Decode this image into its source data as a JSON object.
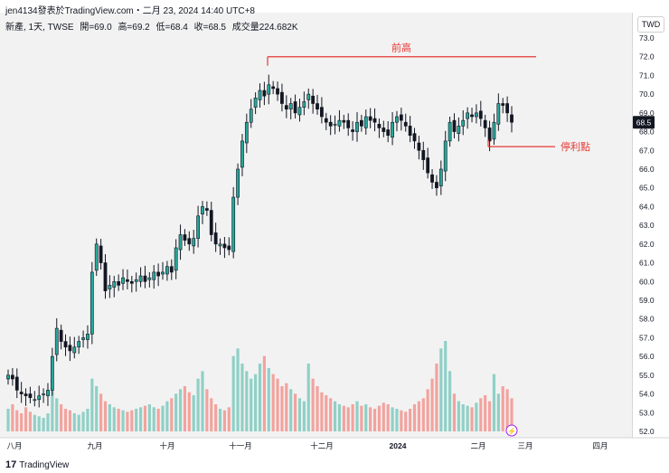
{
  "header": {
    "line1": "jen4134發表於TradingView.com・二月 23, 2024 14:40 UTC+8",
    "symbol": "新產, 1天, TWSE",
    "open": "開=69.0",
    "high": "高=69.2",
    "low": "低=68.4",
    "close": "收=68.5",
    "volume": "成交量224.682K"
  },
  "currency": "TWD",
  "footer": {
    "brand": "TradingView"
  },
  "colors": {
    "up": "#26a69a",
    "down": "#131722",
    "up_vol": "#8fd0c6",
    "down_vol": "#f2a39e",
    "annotation": "#e53935",
    "last_price_bg": "#131722",
    "current_marker": "#a020f0"
  },
  "chart_data": {
    "type": "candlestick",
    "ylim": [
      52.0,
      73.0
    ],
    "y_ticks": [
      "73.0",
      "72.0",
      "71.0",
      "70.0",
      "69.0",
      "68.0",
      "67.0",
      "66.0",
      "65.0",
      "64.0",
      "63.0",
      "62.0",
      "61.0",
      "60.0",
      "59.0",
      "58.0",
      "57.0",
      "56.0",
      "55.0",
      "54.0",
      "53.0",
      "52.0"
    ],
    "x_ticks": [
      "八月",
      "九月",
      "十月",
      "十一月",
      "十二月",
      "2024",
      "二月",
      "三月",
      "四月"
    ],
    "last_price": "68.5",
    "closes": [
      55.0,
      54.8,
      54.2,
      54.0,
      53.9,
      53.8,
      53.7,
      53.9,
      54.0,
      54.2,
      56.0,
      57.5,
      56.8,
      56.5,
      56.3,
      56.5,
      56.8,
      57.0,
      57.2,
      60.5,
      62.0,
      61.0,
      59.5,
      59.8,
      60.0,
      59.8,
      60.2,
      60.0,
      59.9,
      60.1,
      60.3,
      60.0,
      60.2,
      60.5,
      60.3,
      60.5,
      60.8,
      60.5,
      61.8,
      62.5,
      62.2,
      62.0,
      62.3,
      63.5,
      64.0,
      63.8,
      62.5,
      62.0,
      62.0,
      61.8,
      61.7,
      64.5,
      66.0,
      67.5,
      68.5,
      69.2,
      69.8,
      70.2,
      69.9,
      70.5,
      70.3,
      70.0,
      69.5,
      69.2,
      69.5,
      69.0,
      69.3,
      69.6,
      70.0,
      69.5,
      69.2,
      68.8,
      68.5,
      68.3,
      68.4,
      68.6,
      68.5,
      68.2,
      68.0,
      68.5,
      68.3,
      68.8,
      68.6,
      68.5,
      68.2,
      68.0,
      67.8,
      68.5,
      68.8,
      68.6,
      68.3,
      67.8,
      67.5,
      67.0,
      66.5,
      65.8,
      65.3,
      65.0,
      66.0,
      67.5,
      68.5,
      68.0,
      68.3,
      68.6,
      69.0,
      68.8,
      69.0,
      68.7,
      68.2,
      67.5,
      68.5,
      69.5,
      69.4,
      69.0,
      68.5
    ],
    "volumes": [
      15,
      18,
      14,
      12,
      16,
      13,
      11,
      10,
      9,
      12,
      45,
      22,
      18,
      15,
      14,
      12,
      11,
      13,
      15,
      35,
      30,
      25,
      20,
      18,
      16,
      15,
      14,
      13,
      14,
      15,
      16,
      17,
      18,
      16,
      15,
      17,
      20,
      22,
      25,
      28,
      30,
      26,
      24,
      35,
      40,
      28,
      22,
      18,
      15,
      14,
      16,
      50,
      55,
      45,
      40,
      35,
      38,
      45,
      50,
      42,
      38,
      35,
      30,
      32,
      28,
      25,
      22,
      20,
      45,
      35,
      30,
      26,
      24,
      22,
      20,
      18,
      17,
      16,
      18,
      20,
      17,
      18,
      16,
      15,
      17,
      19,
      18,
      16,
      15,
      14,
      13,
      15,
      18,
      20,
      22,
      28,
      35,
      45,
      55,
      60,
      40,
      25,
      20,
      18,
      17,
      16,
      19,
      22,
      24,
      20,
      38,
      25,
      30,
      28,
      22
    ]
  }
}
